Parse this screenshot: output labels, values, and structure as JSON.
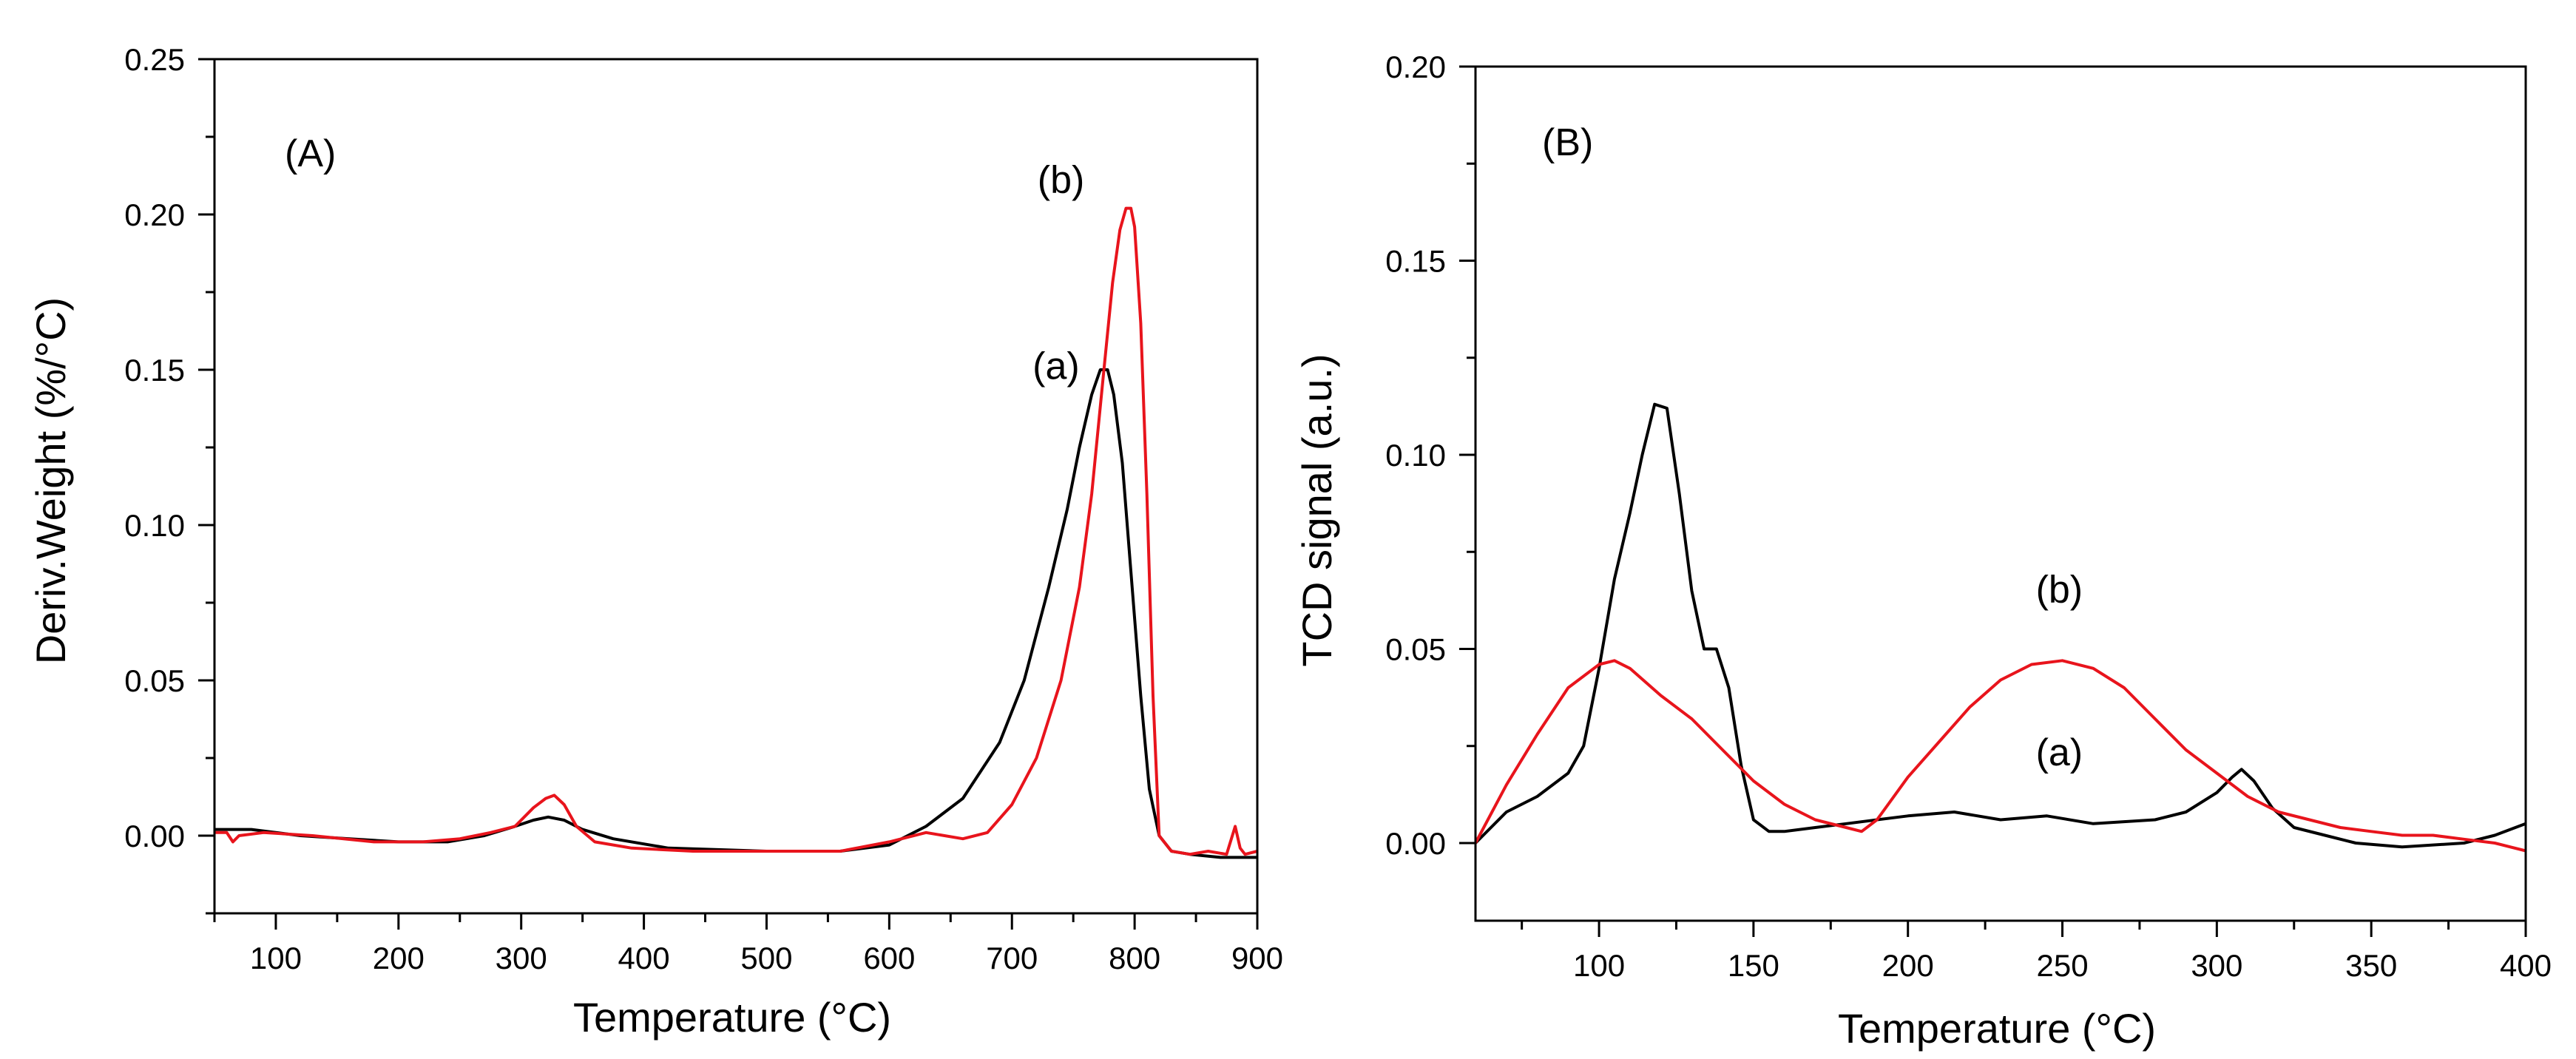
{
  "chart_data": [
    {
      "type": "line",
      "panel_label": "(A)",
      "xlabel": "Temperature (°C)",
      "ylabel": "Deriv.Weight (%/°C)",
      "xlim": [
        50,
        900
      ],
      "ylim": [
        -0.025,
        0.25
      ],
      "xticks": [
        100,
        200,
        300,
        400,
        500,
        600,
        700,
        800,
        900
      ],
      "yticks": [
        0.0,
        0.05,
        0.1,
        0.15,
        0.2,
        0.25
      ],
      "xtick_labels": [
        "100",
        "200",
        "300",
        "400",
        "500",
        "600",
        "700",
        "800",
        "900"
      ],
      "ytick_labels": [
        "0.00",
        "0.05",
        "0.10",
        "0.15",
        "0.20",
        "0.25"
      ],
      "series": [
        {
          "name": "(a)",
          "color": "#000000",
          "x": [
            50,
            80,
            120,
            160,
            200,
            240,
            270,
            295,
            310,
            322,
            335,
            350,
            375,
            420,
            500,
            560,
            600,
            630,
            660,
            690,
            710,
            730,
            745,
            755,
            765,
            772,
            778,
            783,
            790,
            797,
            805,
            812,
            820,
            830,
            845,
            870,
            900
          ],
          "y": [
            0.002,
            0.002,
            0.0,
            -0.001,
            -0.002,
            -0.002,
            0.0,
            0.003,
            0.005,
            0.006,
            0.005,
            0.002,
            -0.001,
            -0.004,
            -0.005,
            -0.005,
            -0.003,
            0.003,
            0.012,
            0.03,
            0.05,
            0.08,
            0.105,
            0.125,
            0.142,
            0.15,
            0.15,
            0.142,
            0.12,
            0.085,
            0.045,
            0.015,
            0.0,
            -0.005,
            -0.006,
            -0.007,
            -0.007
          ]
        },
        {
          "name": "(b)",
          "color": "#e8141c",
          "x": [
            50,
            60,
            65,
            70,
            90,
            130,
            180,
            220,
            250,
            275,
            295,
            310,
            320,
            327,
            335,
            345,
            360,
            390,
            440,
            500,
            560,
            600,
            630,
            660,
            680,
            700,
            720,
            740,
            755,
            765,
            775,
            782,
            788,
            793,
            797,
            800,
            805,
            810,
            815,
            820,
            830,
            845,
            860,
            875,
            882,
            886,
            890,
            900
          ],
          "y": [
            0.001,
            0.001,
            -0.002,
            0.0,
            0.001,
            0.0,
            -0.002,
            -0.002,
            -0.001,
            0.001,
            0.003,
            0.009,
            0.012,
            0.013,
            0.01,
            0.003,
            -0.002,
            -0.004,
            -0.005,
            -0.005,
            -0.005,
            -0.002,
            0.001,
            -0.001,
            0.001,
            0.01,
            0.025,
            0.05,
            0.08,
            0.11,
            0.15,
            0.178,
            0.195,
            0.202,
            0.202,
            0.196,
            0.165,
            0.11,
            0.045,
            0.0,
            -0.005,
            -0.006,
            -0.005,
            -0.006,
            0.003,
            -0.004,
            -0.006,
            -0.005
          ]
        }
      ],
      "annotations": [
        {
          "text": "(a)",
          "x": 736,
          "y": 0.147
        },
        {
          "text": "(b)",
          "x": 740,
          "y": 0.207
        }
      ]
    },
    {
      "type": "line",
      "panel_label": "(B)",
      "xlabel": "Temperature (°C)",
      "ylabel": "TCD signal (a.u.)",
      "xlim": [
        60,
        400
      ],
      "ylim": [
        -0.02,
        0.2
      ],
      "xticks": [
        100,
        150,
        200,
        250,
        300,
        350,
        400
      ],
      "yticks": [
        0.0,
        0.05,
        0.1,
        0.15,
        0.2
      ],
      "xtick_labels": [
        "100",
        "150",
        "200",
        "250",
        "300",
        "350",
        "400"
      ],
      "ytick_labels": [
        "0.00",
        "0.05",
        "0.10",
        "0.15",
        "0.20"
      ],
      "series": [
        {
          "name": "(a)",
          "color": "#000000",
          "x": [
            60,
            70,
            80,
            90,
            95,
            100,
            105,
            110,
            114,
            118,
            122,
            126,
            130,
            134,
            138,
            142,
            146,
            150,
            155,
            160,
            170,
            180,
            200,
            215,
            230,
            245,
            260,
            280,
            290,
            300,
            305,
            308,
            312,
            318,
            325,
            335,
            345,
            360,
            380,
            390,
            400
          ],
          "y": [
            0.0,
            0.008,
            0.012,
            0.018,
            0.025,
            0.045,
            0.068,
            0.085,
            0.1,
            0.113,
            0.112,
            0.09,
            0.065,
            0.05,
            0.05,
            0.04,
            0.02,
            0.006,
            0.003,
            0.003,
            0.004,
            0.005,
            0.007,
            0.008,
            0.006,
            0.007,
            0.005,
            0.006,
            0.008,
            0.013,
            0.017,
            0.019,
            0.016,
            0.009,
            0.004,
            0.002,
            0.0,
            -0.001,
            0.0,
            0.002,
            0.005
          ]
        },
        {
          "name": "(b)",
          "color": "#e8141c",
          "x": [
            60,
            70,
            80,
            90,
            100,
            105,
            110,
            120,
            130,
            140,
            150,
            160,
            170,
            180,
            185,
            190,
            200,
            210,
            220,
            230,
            240,
            250,
            260,
            270,
            280,
            290,
            300,
            310,
            320,
            330,
            340,
            350,
            360,
            370,
            380,
            390,
            400
          ],
          "y": [
            0.0,
            0.015,
            0.028,
            0.04,
            0.046,
            0.047,
            0.045,
            0.038,
            0.032,
            0.024,
            0.016,
            0.01,
            0.006,
            0.004,
            0.003,
            0.006,
            0.017,
            0.026,
            0.035,
            0.042,
            0.046,
            0.047,
            0.045,
            0.04,
            0.032,
            0.024,
            0.018,
            0.012,
            0.008,
            0.006,
            0.004,
            0.003,
            0.002,
            0.002,
            0.001,
            0.0,
            -0.002
          ]
        }
      ],
      "annotations": [
        {
          "text": "(b)",
          "x": 249,
          "y": 0.062
        },
        {
          "text": "(a)",
          "x": 249,
          "y": 0.02
        }
      ]
    }
  ]
}
